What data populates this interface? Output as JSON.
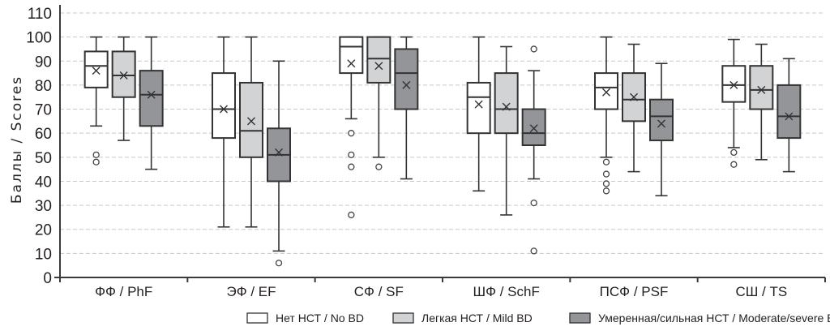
{
  "chart_data": {
    "type": "box",
    "title": "",
    "xlabel": "",
    "ylabel": "Баллы / Scores",
    "ylim": [
      0,
      110
    ],
    "yticks": [
      0,
      10,
      20,
      30,
      40,
      50,
      60,
      70,
      80,
      90,
      100,
      110
    ],
    "grid": true,
    "legend_position": "bottom-right",
    "categories": [
      "ФФ / PhF",
      "ЭФ / EF",
      "СФ / SF",
      "ШФ / SchF",
      "ПСФ / PSF",
      "СШ / TS"
    ],
    "series": [
      {
        "name": "Нет НСТ / No BD",
        "color": "#ffffff",
        "boxes": [
          {
            "min": 63,
            "q1": 79,
            "median": 88,
            "q3": 94,
            "max": 100,
            "mean": 86,
            "outliers": [
              51,
              48
            ]
          },
          {
            "min": 21,
            "q1": 58,
            "median": 70,
            "q3": 85,
            "max": 100,
            "mean": 70,
            "outliers": []
          },
          {
            "min": 66,
            "q1": 85,
            "median": 96,
            "q3": 100,
            "max": 100,
            "mean": 89,
            "outliers": [
              60,
              51,
              46,
              26
            ]
          },
          {
            "min": 36,
            "q1": 60,
            "median": 75,
            "q3": 81,
            "max": 100,
            "mean": 72,
            "outliers": []
          },
          {
            "min": 50,
            "q1": 70,
            "median": 79,
            "q3": 85,
            "max": 100,
            "mean": 77,
            "outliers": [
              48,
              43,
              39,
              36
            ]
          },
          {
            "min": 54,
            "q1": 73,
            "median": 80,
            "q3": 88,
            "max": 99,
            "mean": 80,
            "outliers": [
              52,
              47
            ]
          }
        ]
      },
      {
        "name": "Легкая НСТ / Mild BD",
        "color": "#d2d3d5",
        "boxes": [
          {
            "min": 57,
            "q1": 75,
            "median": 84,
            "q3": 94,
            "max": 100,
            "mean": 84,
            "outliers": []
          },
          {
            "min": 21,
            "q1": 50,
            "median": 61,
            "q3": 81,
            "max": 100,
            "mean": 65,
            "outliers": []
          },
          {
            "min": 50,
            "q1": 81,
            "median": 91,
            "q3": 100,
            "max": 100,
            "mean": 88,
            "outliers": [
              46
            ]
          },
          {
            "min": 26,
            "q1": 60,
            "median": 70,
            "q3": 85,
            "max": 96,
            "mean": 71,
            "outliers": []
          },
          {
            "min": 44,
            "q1": 65,
            "median": 74,
            "q3": 85,
            "max": 97,
            "mean": 75,
            "outliers": []
          },
          {
            "min": 49,
            "q1": 70,
            "median": 78,
            "q3": 88,
            "max": 97,
            "mean": 78,
            "outliers": []
          }
        ]
      },
      {
        "name": "Умеренная/сильная НСТ / Moderate/severe BD",
        "color": "#939598",
        "boxes": [
          {
            "min": 45,
            "q1": 63,
            "median": 76,
            "q3": 86,
            "max": 100,
            "mean": 76,
            "outliers": []
          },
          {
            "min": 11,
            "q1": 40,
            "median": 51,
            "q3": 62,
            "max": 90,
            "mean": 52,
            "outliers": [
              6
            ]
          },
          {
            "min": 41,
            "q1": 70,
            "median": 85,
            "q3": 95,
            "max": 100,
            "mean": 80,
            "outliers": []
          },
          {
            "min": 41,
            "q1": 55,
            "median": 60,
            "q3": 70,
            "max": 86,
            "mean": 62,
            "outliers": [
              95,
              31,
              11
            ]
          },
          {
            "min": 34,
            "q1": 57,
            "median": 67,
            "q3": 74,
            "max": 89,
            "mean": 64,
            "outliers": []
          },
          {
            "min": 44,
            "q1": 58,
            "median": 67,
            "q3": 80,
            "max": 91,
            "mean": 67,
            "outliers": []
          }
        ]
      }
    ]
  }
}
